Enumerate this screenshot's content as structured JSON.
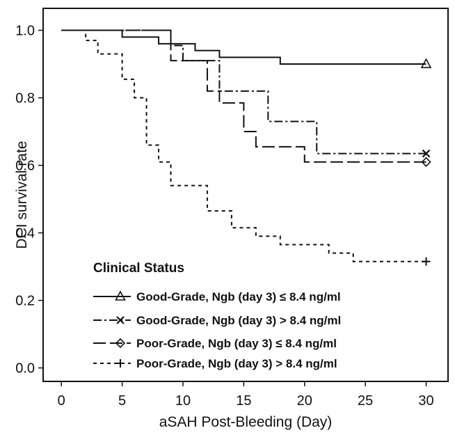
{
  "chart_data": {
    "type": "line",
    "subtype": "kaplan-meier step survival curves",
    "xlabel": "aSAH Post-Bleeding (Day)",
    "ylabel": "DCI survival rate",
    "xlim": [
      -1.5,
      31.8
    ],
    "ylim": [
      -0.04,
      1.065
    ],
    "xticks": [
      0,
      5,
      10,
      15,
      20,
      25,
      30
    ],
    "yticks": [
      0.0,
      0.2,
      0.4,
      0.6,
      0.8,
      1.0
    ],
    "xtick_labels": [
      "0",
      "5",
      "10",
      "15",
      "20",
      "25",
      "30"
    ],
    "ytick_labels": [
      "0.0",
      "0.2",
      "0.4",
      "0.6",
      "0.8",
      "1.0"
    ],
    "grid": false,
    "legend_position": "bottom-left inside",
    "legend_title": "Clinical Status",
    "series": [
      {
        "name": "Good-Grade, Ngb (day 3) ≤ 8.4 ng/ml",
        "line_style": "solid",
        "end_marker": "triangle",
        "color": "#111111",
        "x": [
          0,
          5,
          8,
          11,
          13,
          18,
          30
        ],
        "y": [
          1.0,
          0.98,
          0.96,
          0.94,
          0.92,
          0.9,
          0.9
        ]
      },
      {
        "name": "Good-Grade, Ngb (day 3) > 8.4 ng/ml",
        "line_style": "dash-dot",
        "end_marker": "x",
        "color": "#111111",
        "x": [
          0,
          9,
          10,
          12,
          13,
          17,
          21,
          30
        ],
        "y": [
          1.0,
          0.955,
          0.91,
          0.91,
          0.82,
          0.73,
          0.635,
          0.635
        ]
      },
      {
        "name": "Poor-Grade,  Ngb (day 3) ≤ 8.4 ng/ml",
        "line_style": "long-dash",
        "end_marker": "diamond",
        "color": "#111111",
        "x": [
          0,
          9,
          12,
          13,
          15,
          16,
          20,
          30
        ],
        "y": [
          1.0,
          0.91,
          0.82,
          0.785,
          0.7,
          0.655,
          0.61,
          0.61
        ]
      },
      {
        "name": "Poor-Grade,  Ngb (day 3) > 8.4 ng/ml",
        "line_style": "short-dash",
        "end_marker": "plus",
        "color": "#111111",
        "x": [
          0,
          2,
          3,
          5,
          6,
          7,
          8,
          9,
          12,
          14,
          16,
          18,
          22,
          24,
          30
        ],
        "y": [
          1.0,
          0.97,
          0.93,
          0.855,
          0.8,
          0.66,
          0.61,
          0.54,
          0.465,
          0.415,
          0.39,
          0.365,
          0.34,
          0.315,
          0.315
        ]
      }
    ]
  }
}
